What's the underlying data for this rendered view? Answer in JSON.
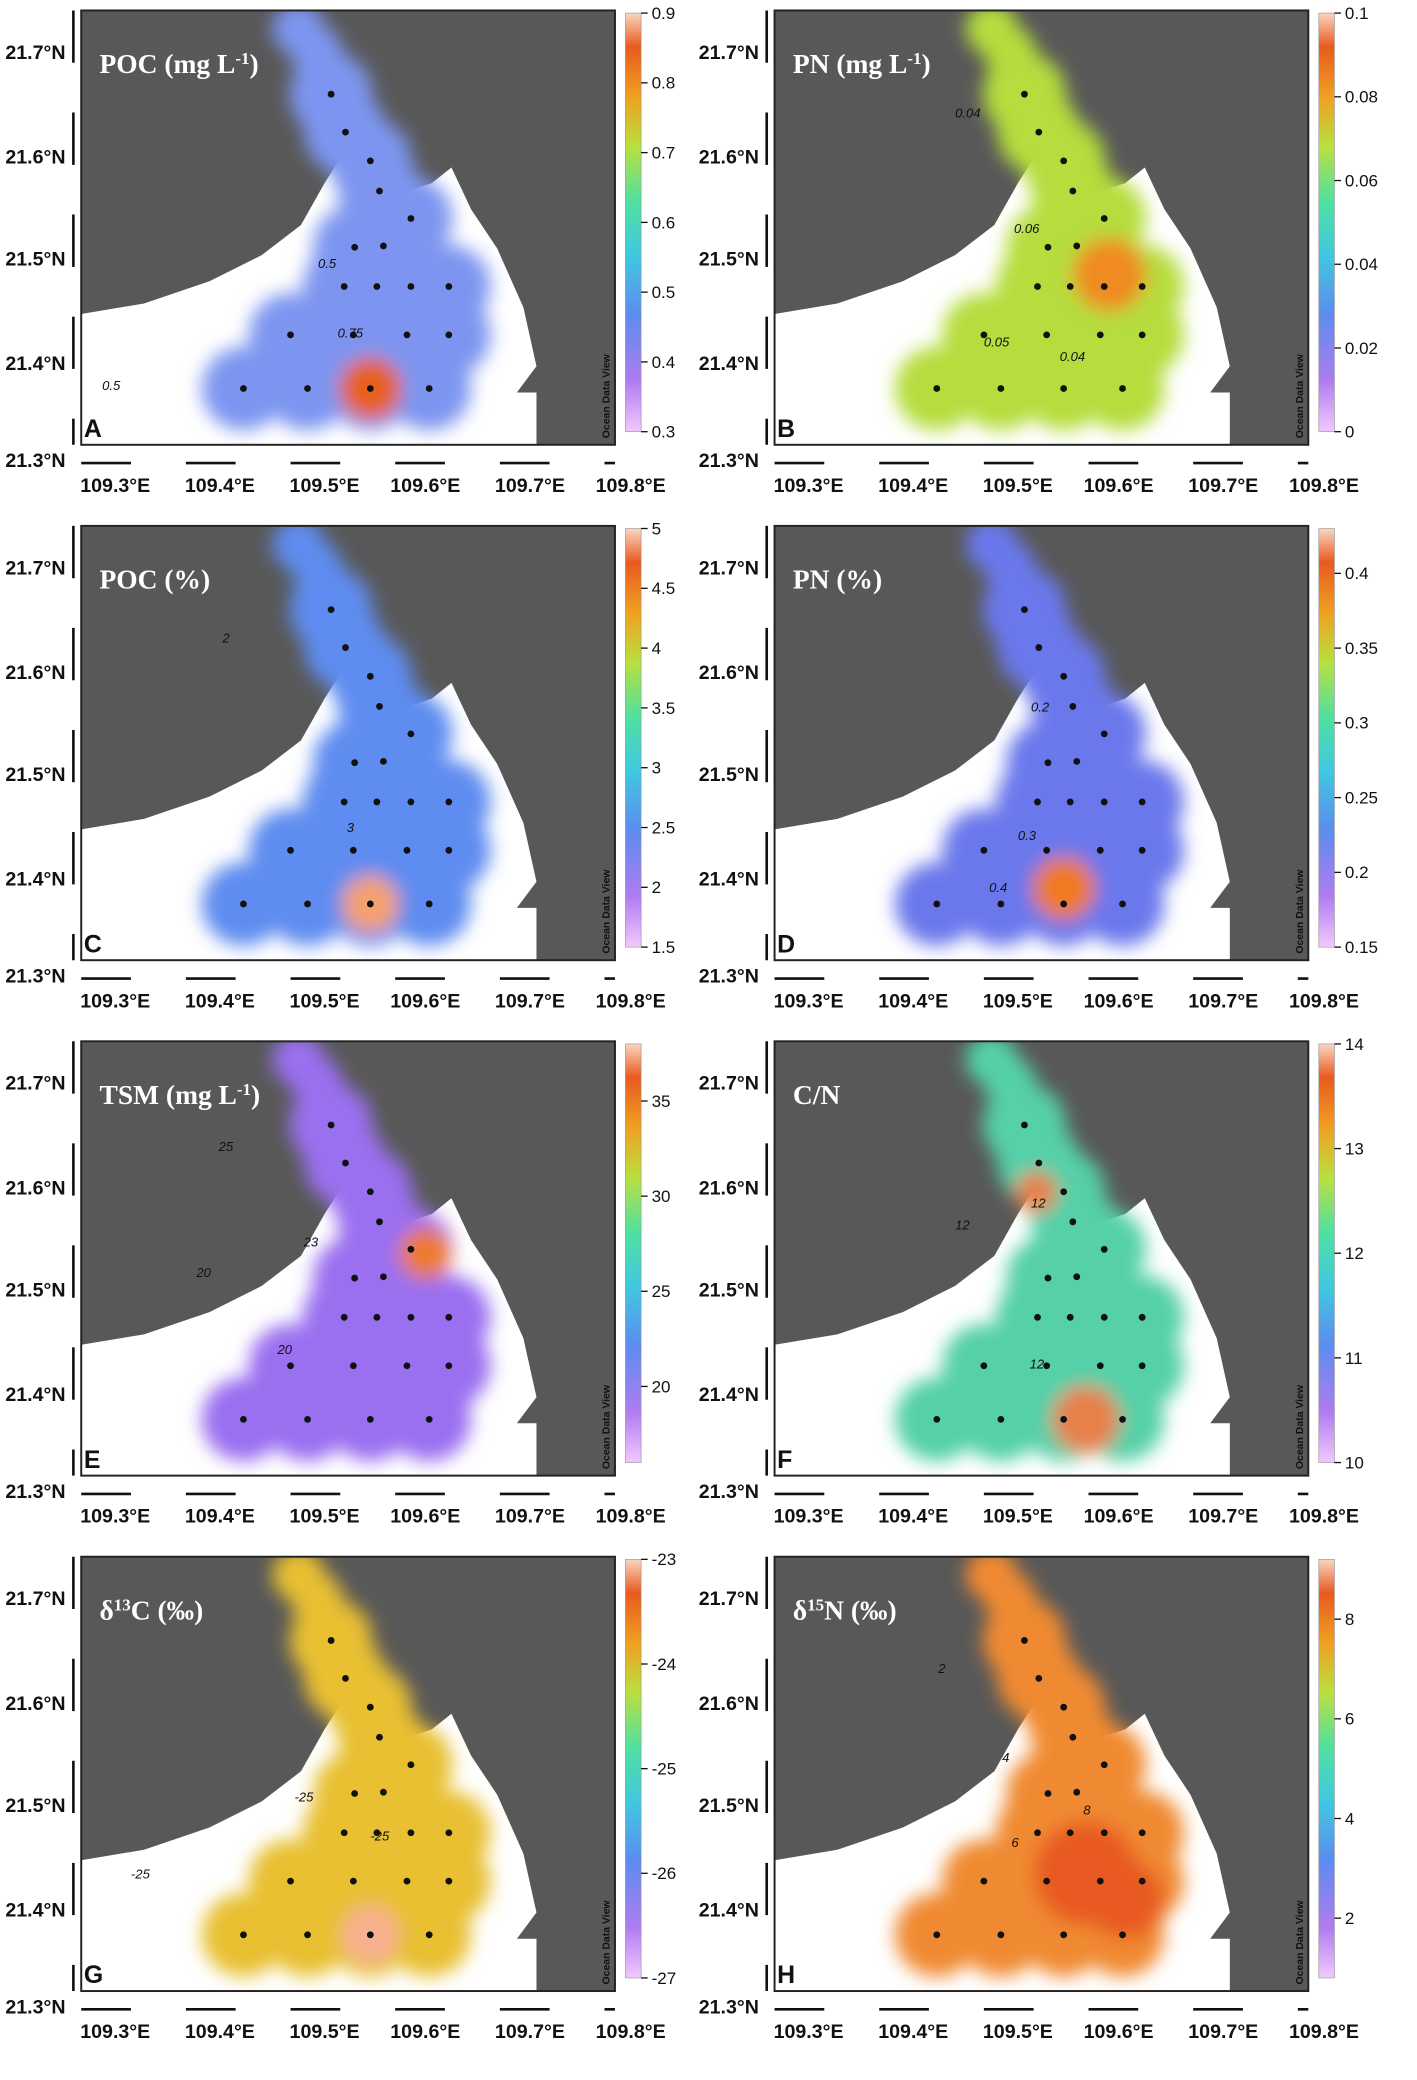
{
  "lat_ticks": [
    "21.7°N",
    "21.6°N",
    "21.5°N",
    "21.4°N",
    "21.3°N"
  ],
  "lon_ticks": [
    "109.3°E",
    "109.4°E",
    "109.5°E",
    "109.6°E",
    "109.7°E",
    "109.8°E"
  ],
  "watermark": "Ocean Data View",
  "panels": [
    {
      "letter": "A",
      "title": [
        {
          "text": "POC (mg L"
        },
        {
          "text": "-1",
          "sup": true
        },
        {
          "text": ")"
        }
      ],
      "colorbar": {
        "range": [
          0.3,
          0.9
        ],
        "ticks": [
          0.3,
          0.4,
          0.5,
          0.6,
          0.7,
          0.8,
          0.9
        ]
      },
      "contour_labels": [
        "0.5",
        "0.5",
        "0.75"
      ],
      "field_colors": [
        "#7d95f0",
        "#e8601c"
      ]
    },
    {
      "letter": "B",
      "title": [
        {
          "text": "PN (mg L"
        },
        {
          "text": "-1",
          "sup": true
        },
        {
          "text": ")"
        }
      ],
      "colorbar": {
        "range": [
          0,
          0.1
        ],
        "ticks": [
          0,
          0.02,
          0.04,
          0.06,
          0.08,
          0.1
        ]
      },
      "contour_labels": [
        "0.04",
        "0.06",
        "0.05",
        "0.04"
      ],
      "field_colors": [
        "#b5dd3c",
        "#f08a20"
      ]
    },
    {
      "letter": "C",
      "title": [
        {
          "text": "POC (%)"
        }
      ],
      "colorbar": {
        "range": [
          1.5,
          5
        ],
        "ticks": [
          1.5,
          2,
          2.5,
          3,
          3.5,
          4,
          4.5,
          5
        ]
      },
      "contour_labels": [
        "2",
        "3"
      ],
      "field_colors": [
        "#5f8cf0",
        "#f5a070"
      ]
    },
    {
      "letter": "D",
      "title": [
        {
          "text": "PN (%)"
        }
      ],
      "colorbar": {
        "range": [
          0.15,
          0.43
        ],
        "ticks": [
          0.15,
          0.2,
          0.25,
          0.3,
          0.35,
          0.4
        ]
      },
      "contour_labels": [
        "0.2",
        "0.3",
        "0.4"
      ],
      "field_colors": [
        "#6a78ec",
        "#f07a20"
      ]
    },
    {
      "letter": "E",
      "title": [
        {
          "text": "TSM (mg L"
        },
        {
          "text": "-1",
          "sup": true
        },
        {
          "text": ")"
        }
      ],
      "colorbar": {
        "range": [
          16,
          38
        ],
        "ticks": [
          20,
          25,
          30,
          35
        ]
      },
      "contour_labels": [
        "25",
        "23",
        "20",
        "20"
      ],
      "field_colors": [
        "#9a6ff0",
        "#ee7a2a"
      ]
    },
    {
      "letter": "F",
      "title": [
        {
          "text": "C/N"
        }
      ],
      "colorbar": {
        "range": [
          10,
          14
        ],
        "ticks": [
          10,
          11,
          12,
          13,
          14
        ]
      },
      "contour_labels": [
        "12",
        "12",
        "12"
      ],
      "field_colors": [
        "#55d0a8",
        "#e8804a"
      ]
    },
    {
      "letter": "G",
      "title": [
        {
          "text": "δ"
        },
        {
          "text": "13",
          "sup": true
        },
        {
          "text": "C (‰)"
        }
      ],
      "colorbar": {
        "range": [
          -27,
          -23
        ],
        "ticks": [
          -27,
          -26,
          -25,
          -24,
          -23
        ]
      },
      "contour_labels": [
        "-25",
        "-25",
        "-25"
      ],
      "field_colors": [
        "#e8c030",
        "#f8b090"
      ]
    },
    {
      "letter": "H",
      "title": [
        {
          "text": "δ"
        },
        {
          "text": "15",
          "sup": true
        },
        {
          "text": "N (‰)"
        }
      ],
      "colorbar": {
        "range": [
          0.8,
          9.2
        ],
        "ticks": [
          2,
          4,
          6,
          8
        ]
      },
      "contour_labels": [
        "2",
        "4",
        "6",
        "8"
      ],
      "field_colors": [
        "#f08a30",
        "#e85a20"
      ]
    }
  ]
}
